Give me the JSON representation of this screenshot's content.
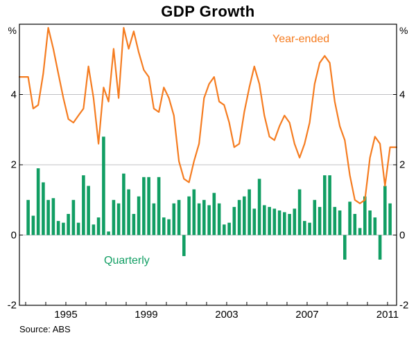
{
  "chart_data": {
    "type": "bar",
    "title": "GDP Growth",
    "unit": "%",
    "source": "Source: ABS",
    "ylim": [
      -2,
      6
    ],
    "yticks": [
      -2,
      0,
      2,
      4
    ],
    "gridlines": [
      0,
      2,
      4
    ],
    "xticks_labeled": [
      1995,
      1999,
      2003,
      2007,
      2011
    ],
    "x_year_ticks_start": 1993,
    "x_year_ticks_end": 2011,
    "x_range": [
      1992.69,
      2011.45
    ],
    "frequency": "quarterly",
    "first_quarter": "1993Q1",
    "colors": {
      "bar": "#119e63",
      "line": "#f57c20",
      "grid": "#c0c0c4",
      "frame": "#000000"
    },
    "series": [
      {
        "name": "Quarterly",
        "type": "bar",
        "values": [
          1.0,
          0.55,
          1.9,
          1.5,
          1.0,
          1.05,
          0.4,
          0.35,
          0.6,
          1.0,
          0.35,
          1.7,
          1.4,
          0.3,
          0.5,
          2.8,
          0.1,
          1.0,
          0.9,
          1.75,
          1.3,
          0.6,
          1.1,
          1.65,
          1.65,
          0.9,
          1.65,
          0.5,
          0.45,
          0.9,
          1.0,
          -0.6,
          1.1,
          1.3,
          0.9,
          1.0,
          0.85,
          1.2,
          0.9,
          0.3,
          0.35,
          0.8,
          1.0,
          1.1,
          1.3,
          0.75,
          1.6,
          0.85,
          0.8,
          0.75,
          0.7,
          0.65,
          0.6,
          0.75,
          1.3,
          0.4,
          0.35,
          1.0,
          0.8,
          1.7,
          1.7,
          0.8,
          0.7,
          -0.7,
          0.95,
          0.6,
          0.2,
          1.1,
          0.7,
          0.5,
          -0.7,
          1.4,
          0.9
        ]
      },
      {
        "name": "Year-ended",
        "type": "line",
        "values": [
          4.5,
          3.6,
          3.7,
          4.6,
          5.9,
          5.3,
          4.6,
          3.9,
          3.3,
          3.2,
          3.4,
          3.6,
          4.8,
          3.9,
          2.6,
          4.2,
          3.8,
          5.3,
          3.9,
          5.9,
          5.3,
          5.8,
          5.2,
          4.7,
          4.5,
          3.6,
          3.5,
          4.2,
          3.9,
          3.4,
          2.1,
          1.6,
          1.5,
          2.1,
          2.6,
          3.9,
          4.3,
          4.5,
          3.8,
          3.7,
          3.2,
          2.5,
          2.6,
          3.5,
          4.2,
          4.8,
          4.3,
          3.4,
          2.8,
          2.7,
          3.1,
          3.4,
          3.2,
          2.6,
          2.2,
          2.6,
          3.2,
          4.3,
          4.9,
          5.1,
          4.9,
          3.8,
          3.1,
          2.7,
          1.7,
          1.0,
          0.9,
          1.0,
          2.2,
          2.8,
          2.6,
          1.4,
          2.5
        ]
      }
    ]
  }
}
